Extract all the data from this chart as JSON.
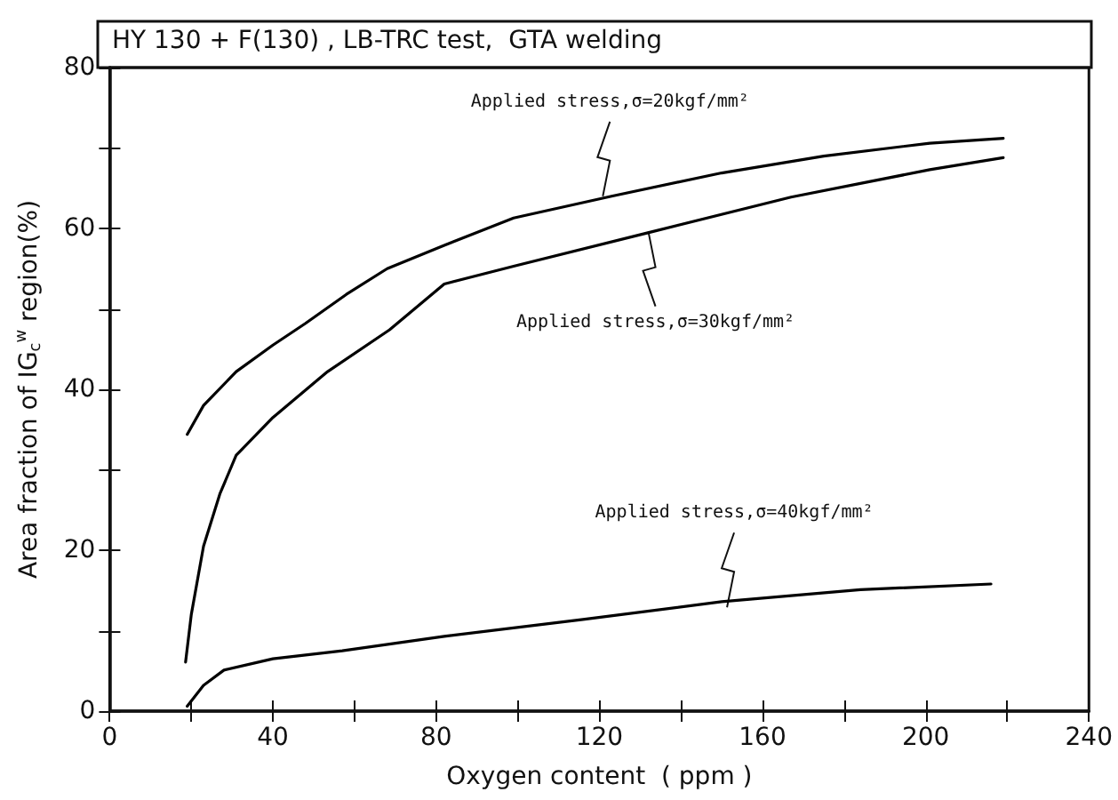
{
  "chart_data": {
    "type": "line",
    "title": "HY 130 + F(130) , LB-TRC test,  GTA welding",
    "xlabel": "Oxygen content  ( ppm )",
    "ylabel": "Area fraction of IG$_{c}$$^{w}$ region(%)",
    "xlim": [
      0,
      240
    ],
    "xticks": [
      0,
      40,
      80,
      120,
      160,
      200,
      240
    ],
    "ylim": [
      0,
      80
    ],
    "yticks": [
      0,
      20,
      40,
      60,
      80
    ],
    "grid": false,
    "marker": "none",
    "line_style": "solid",
    "series": [
      {
        "color": "#000000",
        "x": [
          19,
          23,
          31,
          40,
          48,
          58,
          68,
          82,
          99,
          123,
          150,
          175,
          201,
          219
        ],
        "values": [
          34.4,
          38,
          42.2,
          45.5,
          48.2,
          51.8,
          55,
          57.9,
          61.3,
          64.0,
          66.9,
          69,
          70.6,
          71.2
        ]
      },
      {
        "color": "#000000",
        "x": [
          18.6,
          20,
          23,
          27,
          31,
          40,
          53.4,
          68.6,
          82,
          99,
          133,
          167,
          201,
          219
        ],
        "values": [
          6.1,
          12,
          20.5,
          27,
          31.8,
          36.5,
          42.2,
          47.4,
          53.1,
          55.3,
          59.6,
          63.9,
          67.3,
          68.8
        ]
      },
      {
        "color": "#000000",
        "x": [
          19,
          23,
          28,
          40,
          57,
          82,
          116,
          150,
          184,
          216
        ],
        "values": [
          0.6,
          3.2,
          5.1,
          6.5,
          7.5,
          9.3,
          11.4,
          13.6,
          15.1,
          15.8
        ]
      }
    ],
    "annotations": [
      {
        "text": "Applied stress,σ=20kgf/mm²",
        "x": 122,
        "y": 64
      },
      {
        "text": "Applied stress,σ=30kgf/mm²",
        "x": 133,
        "y": 59.6
      },
      {
        "text": "Applied stress,σ=40kgf/mm²",
        "x": 152,
        "y": 12.9
      }
    ]
  }
}
